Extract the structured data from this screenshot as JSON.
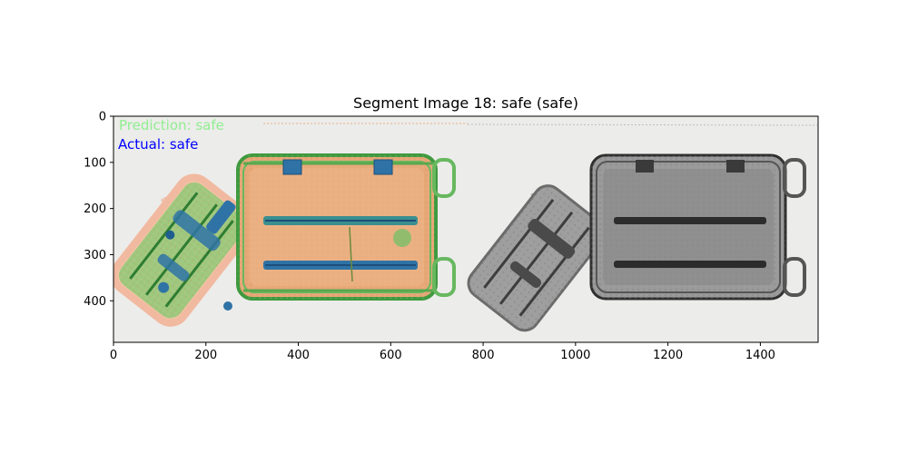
{
  "title": "Segment Image 18: safe (safe)",
  "overlay": {
    "prediction_label": "Prediction: safe",
    "actual_label": "Actual: safe",
    "prediction_color": "#90ee90",
    "actual_color": "#0000ff"
  },
  "axes": {
    "x_ticks": [
      {
        "value": 0,
        "label": "0"
      },
      {
        "value": 200,
        "label": "200"
      },
      {
        "value": 400,
        "label": "400"
      },
      {
        "value": 600,
        "label": "600"
      },
      {
        "value": 800,
        "label": "800"
      },
      {
        "value": 1000,
        "label": "1000"
      },
      {
        "value": 1200,
        "label": "1200"
      },
      {
        "value": 1400,
        "label": "1400"
      }
    ],
    "y_ticks": [
      {
        "value": 0,
        "label": "0"
      },
      {
        "value": 100,
        "label": "100"
      },
      {
        "value": 200,
        "label": "200"
      },
      {
        "value": 300,
        "label": "300"
      },
      {
        "value": 400,
        "label": "400"
      }
    ],
    "xlim": [
      0,
      1525
    ],
    "ylim": [
      0,
      490
    ]
  },
  "colors": {
    "scan_background": "#ececea",
    "color_bag_fill": "#e0a578",
    "color_bag_edge": "#4fa84a",
    "handle_bar": "#2a6ea8",
    "gray_bag_fill": "#8a8a8a",
    "gray_bag_edge": "#3a3a3a"
  }
}
